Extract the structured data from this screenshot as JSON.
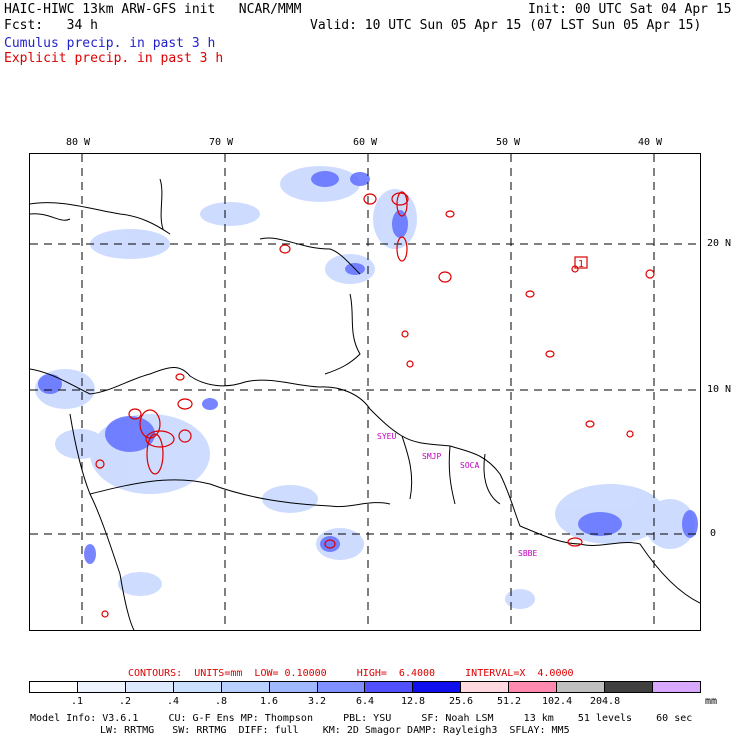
{
  "header": {
    "title": "HAIC-HIWC 13km ARW-GFS init   NCAR/MMM",
    "init": "Init: 00 UTC Sat 04 Apr 15",
    "fcst": "Fcst:   34 h",
    "valid": "Valid: 10 UTC Sun 05 Apr 15 (07 LST Sun 05 Apr 15)",
    "legend_cumulus": "Cumulus precip. in past 3 h",
    "legend_explicit": "Explicit precip. in past 3 h"
  },
  "map": {
    "lon_labels": [
      "80 W",
      "70 W",
      "60 W",
      "50 W",
      "40 W"
    ],
    "lat_labels": [
      "20 N",
      "10 N",
      "0"
    ],
    "contour_label": "1",
    "cities": [
      "SYEU",
      "SMJP",
      "SOCA",
      "SBBE"
    ]
  },
  "contour_info": "CONTOURS:  UNITS=mm  LOW= 0.10000     HIGH=  6.4000     INTERVAL=X  4.0000",
  "colorbar": {
    "colors": [
      "#ffffff",
      "#eef4ff",
      "#dde9ff",
      "#cce0ff",
      "#b8d0ff",
      "#a0b8ff",
      "#8090ff",
      "#5050ff",
      "#1010ee",
      "#ffd8e0",
      "#ff8ab0",
      "#bfbfbf",
      "#404040",
      "#d8a8ff"
    ],
    "labels": [
      ".1",
      ".2",
      ".4",
      ".8",
      "1.6",
      "3.2",
      "6.4",
      "12.8",
      "25.6",
      "51.2",
      "102.4",
      "204.8"
    ],
    "units": "mm"
  },
  "footer": {
    "line1": "Model Info: V3.6.1     CU: G-F Ens MP: Thompson     PBL: YSU     SF: Noah LSM     13 km    51 levels    60 sec",
    "line2": "LW: RRTMG   SW: RRTMG  DIFF: full    KM: 2D Smagor DAMP: Rayleigh3  SFLAY: MM5"
  }
}
